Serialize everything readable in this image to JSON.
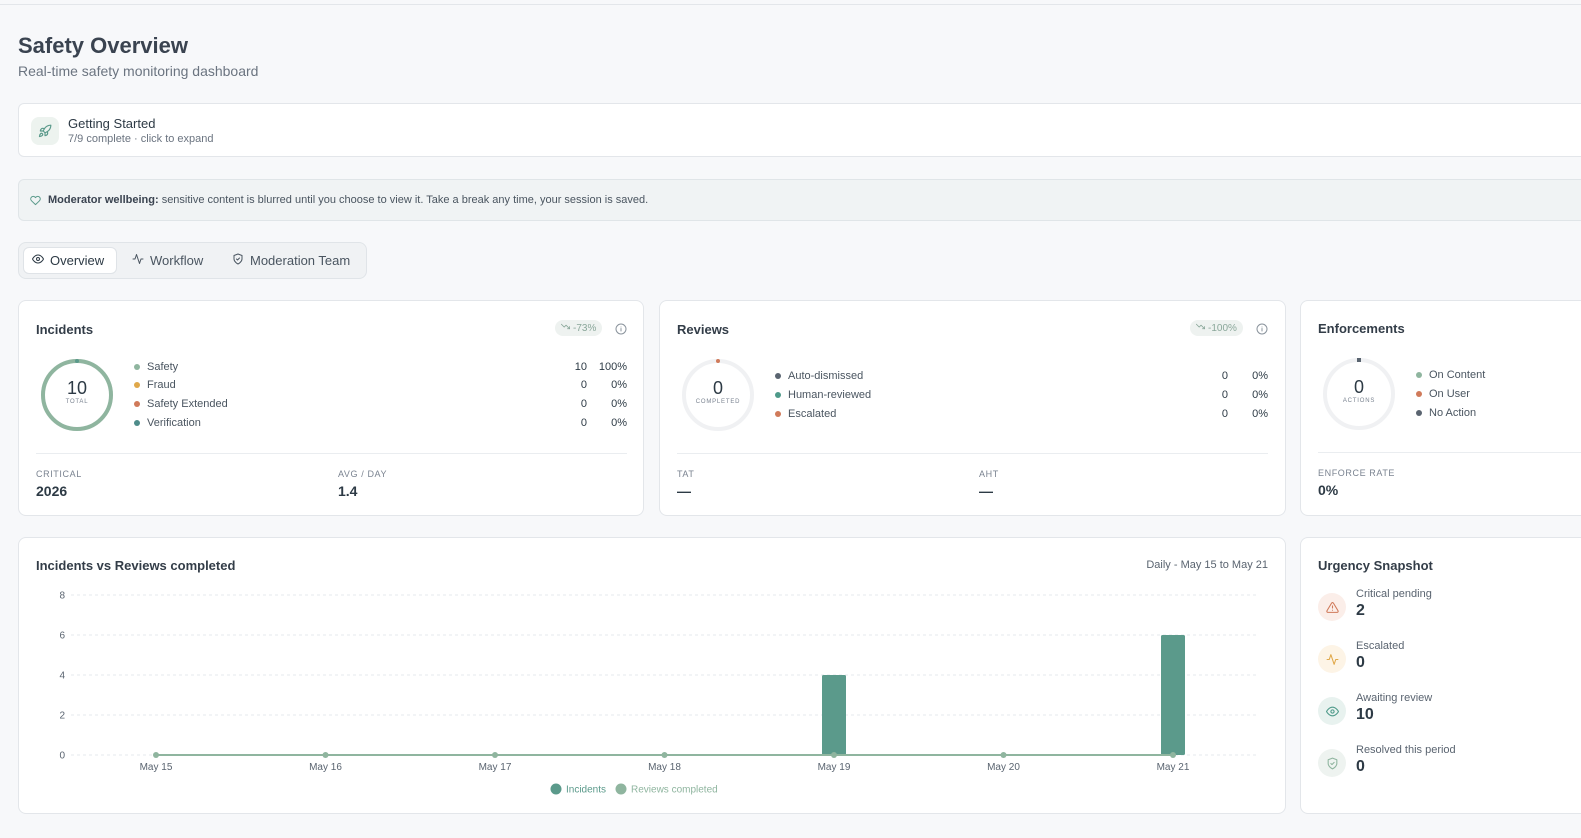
{
  "page": {
    "title": "Safety Overview",
    "subtitle": "Real-time safety monitoring dashboard"
  },
  "getting_started": {
    "title": "Getting Started",
    "subtitle": "7/9 complete · click to expand",
    "icon": "rocket-icon"
  },
  "wellbeing": {
    "label": "Moderator wellbeing:",
    "text": "sensitive content is blurred until you choose to view it. Take a break any time, your session is saved.",
    "icon": "heart-icon"
  },
  "tabs": [
    {
      "label": "Overview",
      "icon": "eye-icon",
      "active": true
    },
    {
      "label": "Workflow",
      "icon": "activity-icon",
      "active": false
    },
    {
      "label": "Moderation Team",
      "icon": "shield-icon",
      "active": false
    }
  ],
  "incidents": {
    "title": "Incidents",
    "trend": "-73%",
    "total": "10",
    "total_label": "TOTAL",
    "rows": [
      {
        "label": "Safety",
        "value": "10",
        "pct": "100%",
        "color": "#8fb59f"
      },
      {
        "label": "Fraud",
        "value": "0",
        "pct": "0%",
        "color": "#e0a84a"
      },
      {
        "label": "Safety Extended",
        "value": "0",
        "pct": "0%",
        "color": "#d07a5a"
      },
      {
        "label": "Verification",
        "value": "0",
        "pct": "0%",
        "color": "#4e8c8a"
      }
    ],
    "stats": [
      {
        "label": "CRITICAL",
        "value": "2026"
      },
      {
        "label": "AVG / DAY",
        "value": "1.4"
      }
    ]
  },
  "reviews": {
    "title": "Reviews",
    "trend": "-100%",
    "total": "0",
    "total_label": "COMPLETED",
    "rows": [
      {
        "label": "Auto-dismissed",
        "value": "0",
        "pct": "0%",
        "color": "#5a6470"
      },
      {
        "label": "Human-reviewed",
        "value": "0",
        "pct": "0%",
        "color": "#4e9a8a"
      },
      {
        "label": "Escalated",
        "value": "0",
        "pct": "0%",
        "color": "#d07a5a"
      }
    ],
    "stats": [
      {
        "label": "TAT",
        "value": "—"
      },
      {
        "label": "AHT",
        "value": "—"
      }
    ]
  },
  "enforcements": {
    "title": "Enforcements",
    "total": "0",
    "total_label": "ACTIONS",
    "rows": [
      {
        "label": "On Content",
        "color": "#8fb59f"
      },
      {
        "label": "On User",
        "color": "#d07a5a"
      },
      {
        "label": "No Action",
        "color": "#5a6470"
      }
    ],
    "stats": [
      {
        "label": "ENFORCE RATE",
        "value": "0%"
      }
    ]
  },
  "chart_card": {
    "title": "Incidents vs Reviews completed",
    "range": "Daily - May 15 to May 21"
  },
  "chart_data": {
    "type": "bar",
    "categories": [
      "May 15",
      "May 16",
      "May 17",
      "May 18",
      "May 19",
      "May 20",
      "May 21"
    ],
    "series": [
      {
        "name": "Incidents",
        "type": "bar",
        "values": [
          0,
          0,
          0,
          0,
          4,
          0,
          6
        ],
        "color": "#5b9a8b"
      },
      {
        "name": "Reviews completed",
        "type": "line",
        "values": [
          0,
          0,
          0,
          0,
          0,
          0,
          0
        ],
        "color": "#8fb59f"
      }
    ],
    "yticks": [
      "8",
      "6",
      "4",
      "2",
      "0"
    ],
    "ylim": [
      0,
      8
    ],
    "grid": true,
    "legend": "bottom"
  },
  "urgency": {
    "title": "Urgency Snapshot",
    "items": [
      {
        "label": "Critical pending",
        "value": "2",
        "icon": "alert-triangle-icon",
        "color": "#d07a5a",
        "bg": "#fbeee9"
      },
      {
        "label": "Escalated",
        "value": "0",
        "icon": "activity-icon",
        "color": "#e0a84a",
        "bg": "#fdf4e6"
      },
      {
        "label": "Awaiting review",
        "value": "10",
        "icon": "eye-icon",
        "color": "#4e9a8a",
        "bg": "#e8f2ef"
      },
      {
        "label": "Resolved this period",
        "value": "0",
        "icon": "shield-check-icon",
        "color": "#8fb59f",
        "bg": "#eef3f0"
      }
    ]
  }
}
